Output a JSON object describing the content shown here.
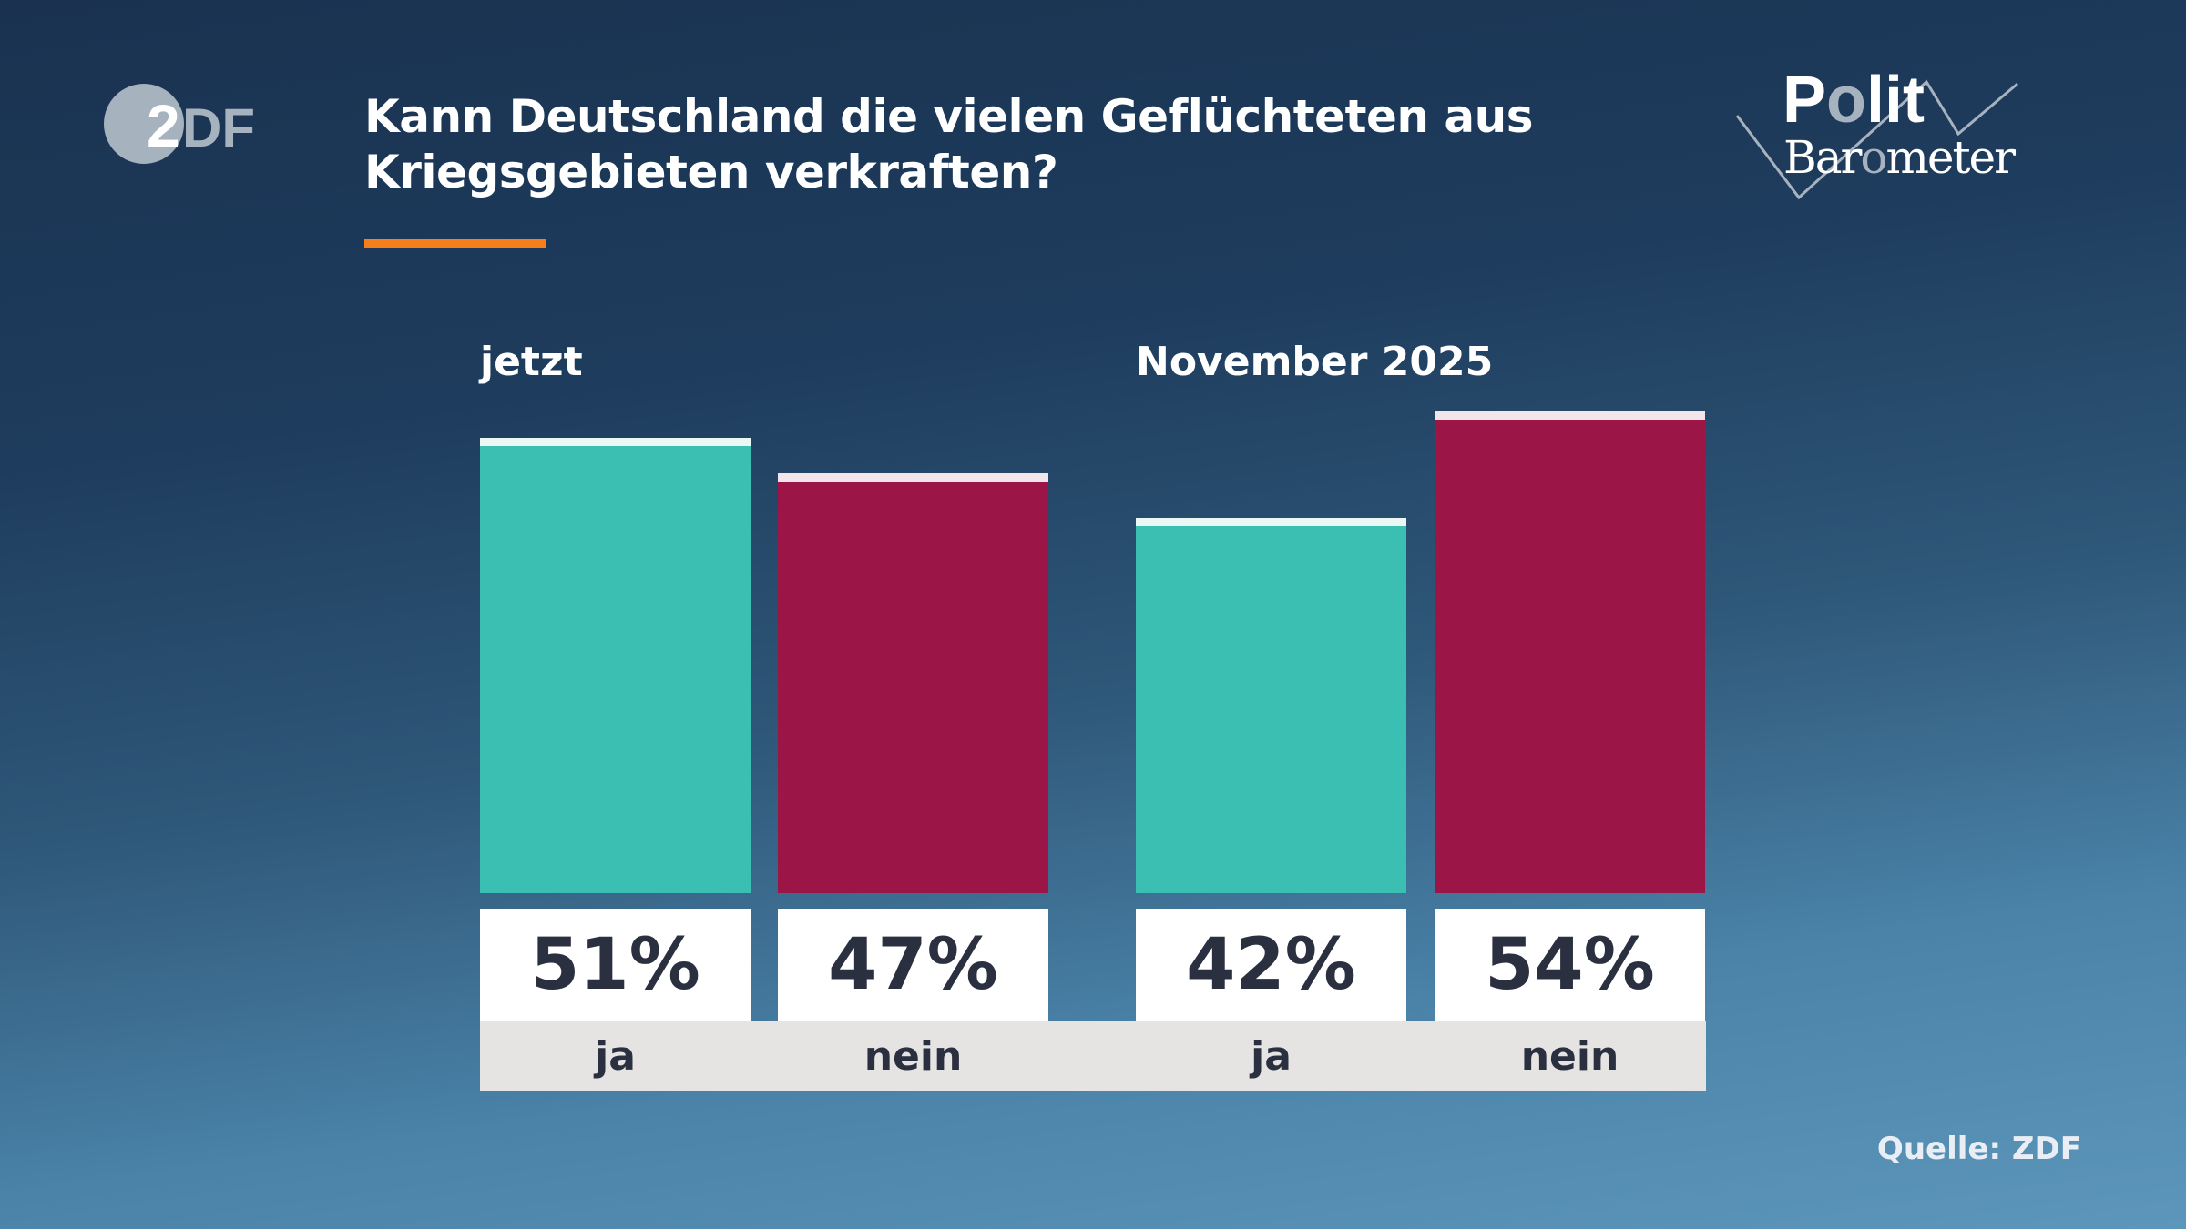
{
  "header": {
    "logo_text": "ZDF",
    "title_line1": "Kann Deutschland die vielen Geflüchteten aus",
    "title_line2": "Kriegsgebieten verkraften?",
    "brand_logo_text": "Polit Barometer"
  },
  "colors": {
    "ja": "#3bbfb2",
    "nein": "#9b1646",
    "accent": "#f77f1b"
  },
  "chart_data": {
    "type": "bar",
    "ylim": [
      0,
      100
    ],
    "grid": false,
    "groups": [
      {
        "label": "jetzt",
        "bars": [
          {
            "category": "ja",
            "value": 51,
            "value_label": "51%"
          },
          {
            "category": "nein",
            "value": 47,
            "value_label": "47%"
          }
        ]
      },
      {
        "label": "November 2025",
        "bars": [
          {
            "category": "ja",
            "value": 42,
            "value_label": "42%"
          },
          {
            "category": "nein",
            "value": 54,
            "value_label": "54%"
          }
        ]
      }
    ]
  },
  "footer": {
    "source": "Quelle: ZDF"
  }
}
